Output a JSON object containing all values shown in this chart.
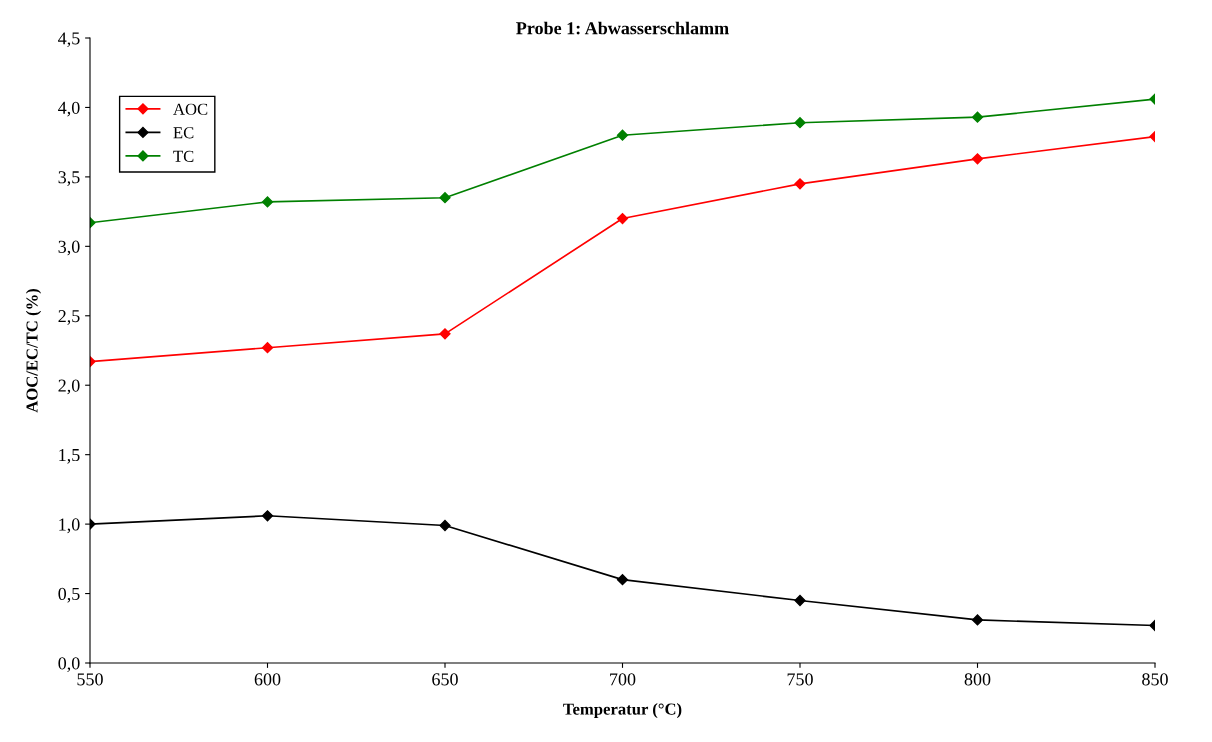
{
  "chart_data": {
    "type": "line",
    "title": "Probe 1: Abwasserschlamm",
    "xlabel": "Temperatur (°C)",
    "ylabel": "AOC/EC/TC (%)",
    "x": [
      550,
      600,
      650,
      700,
      750,
      800,
      850
    ],
    "series": [
      {
        "name": "AOC",
        "color": "#ff0000",
        "values": [
          2.17,
          2.27,
          2.37,
          3.2,
          3.45,
          3.63,
          3.79
        ]
      },
      {
        "name": "EC",
        "color": "#000000",
        "values": [
          1.0,
          1.06,
          0.99,
          0.6,
          0.45,
          0.31,
          0.27
        ]
      },
      {
        "name": "TC",
        "color": "#008000",
        "values": [
          3.17,
          3.32,
          3.35,
          3.8,
          3.89,
          3.93,
          4.06
        ]
      }
    ],
    "xlim": [
      550,
      850
    ],
    "xticks": [
      550,
      600,
      650,
      700,
      750,
      800,
      850
    ],
    "ylim": [
      0,
      4.5
    ],
    "yticks": [
      {
        "value": 0,
        "label": "0,0"
      },
      {
        "value": 0.5,
        "label": "0,5"
      },
      {
        "value": 1,
        "label": "1,0"
      },
      {
        "value": 1.5,
        "label": "1,5"
      },
      {
        "value": 2,
        "label": "2,0"
      },
      {
        "value": 2.5,
        "label": "2,5"
      },
      {
        "value": 3,
        "label": "3,0"
      },
      {
        "value": 3.5,
        "label": "3,5"
      },
      {
        "value": 4,
        "label": "4,0"
      },
      {
        "value": 4.5,
        "label": "4,5"
      }
    ],
    "marker": "diamond",
    "line_style": "solid",
    "legend": "top left",
    "grid": false
  }
}
